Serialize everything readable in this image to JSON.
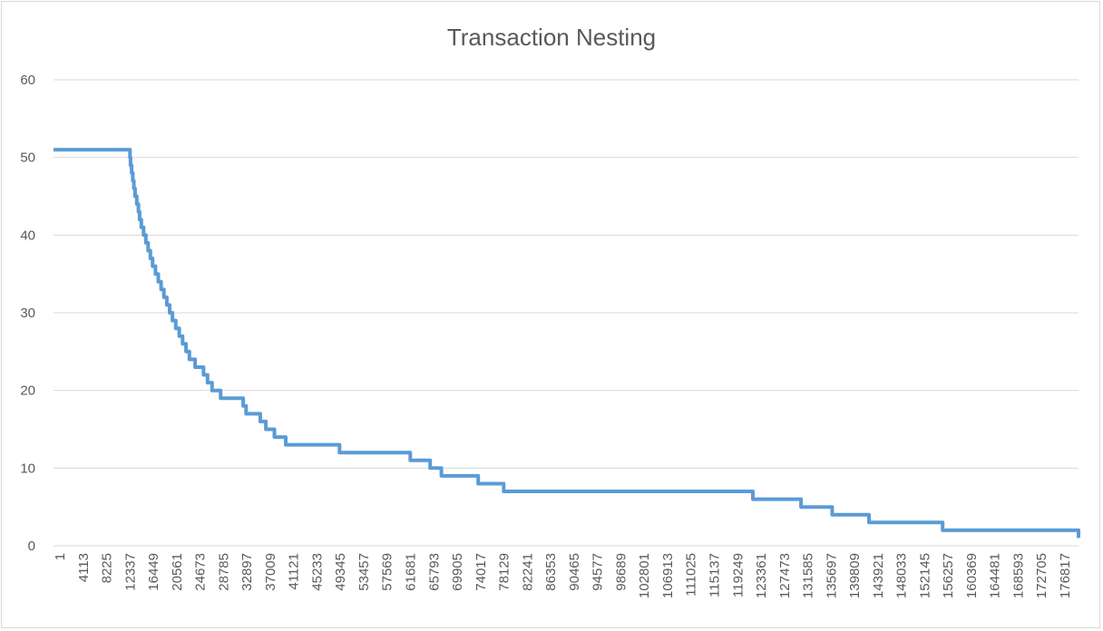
{
  "chart_data": {
    "type": "line",
    "title": "Transaction Nesting",
    "xlabel": "",
    "ylabel": "",
    "ylim": [
      0,
      60
    ],
    "yticks": [
      0,
      10,
      20,
      30,
      40,
      50,
      60
    ],
    "xlim": [
      1,
      181000
    ],
    "xtick_labels": [
      "1",
      "4113",
      "8225",
      "12337",
      "16449",
      "20561",
      "24673",
      "28785",
      "32897",
      "37009",
      "41121",
      "45233",
      "49345",
      "53457",
      "57569",
      "61681",
      "65793",
      "69905",
      "74017",
      "78129",
      "82241",
      "86353",
      "90465",
      "94577",
      "98689",
      "102801",
      "106913",
      "111025",
      "115137",
      "119249",
      "123361",
      "127473",
      "131585",
      "135697",
      "139809",
      "143921",
      "148033",
      "152145",
      "156257",
      "160369",
      "164481",
      "168593",
      "172705",
      "176817"
    ],
    "grid": "horizontal",
    "legend": "none",
    "color": "#5b9bd5",
    "series": [
      {
        "x": [
          1,
          13500,
          13600,
          13800,
          14000,
          14200,
          14400,
          14700,
          15000,
          15200,
          15500,
          15900,
          16300,
          16700,
          17100,
          17500,
          18000,
          18500,
          19000,
          19500,
          20000,
          20500,
          21000,
          21600,
          22200,
          22800,
          23400,
          24000,
          25000,
          26500,
          27200,
          28000,
          29500,
          33500,
          34000,
          36500,
          37500,
          39000,
          41000,
          50500,
          63000,
          66500,
          68500,
          75000,
          79500,
          123500,
          132000,
          137500,
          144000,
          157000,
          181000
        ],
        "y": [
          51,
          50,
          49,
          48,
          47,
          46,
          45,
          44,
          43,
          42,
          41,
          40,
          39,
          38,
          37,
          36,
          35,
          34,
          33,
          32,
          31,
          30,
          29,
          28,
          27,
          26,
          25,
          24,
          23,
          22,
          21,
          20,
          19,
          18,
          17,
          16,
          15,
          14,
          13,
          12,
          11,
          10,
          9,
          8,
          7,
          6,
          5,
          4,
          3,
          2,
          1
        ]
      }
    ]
  }
}
